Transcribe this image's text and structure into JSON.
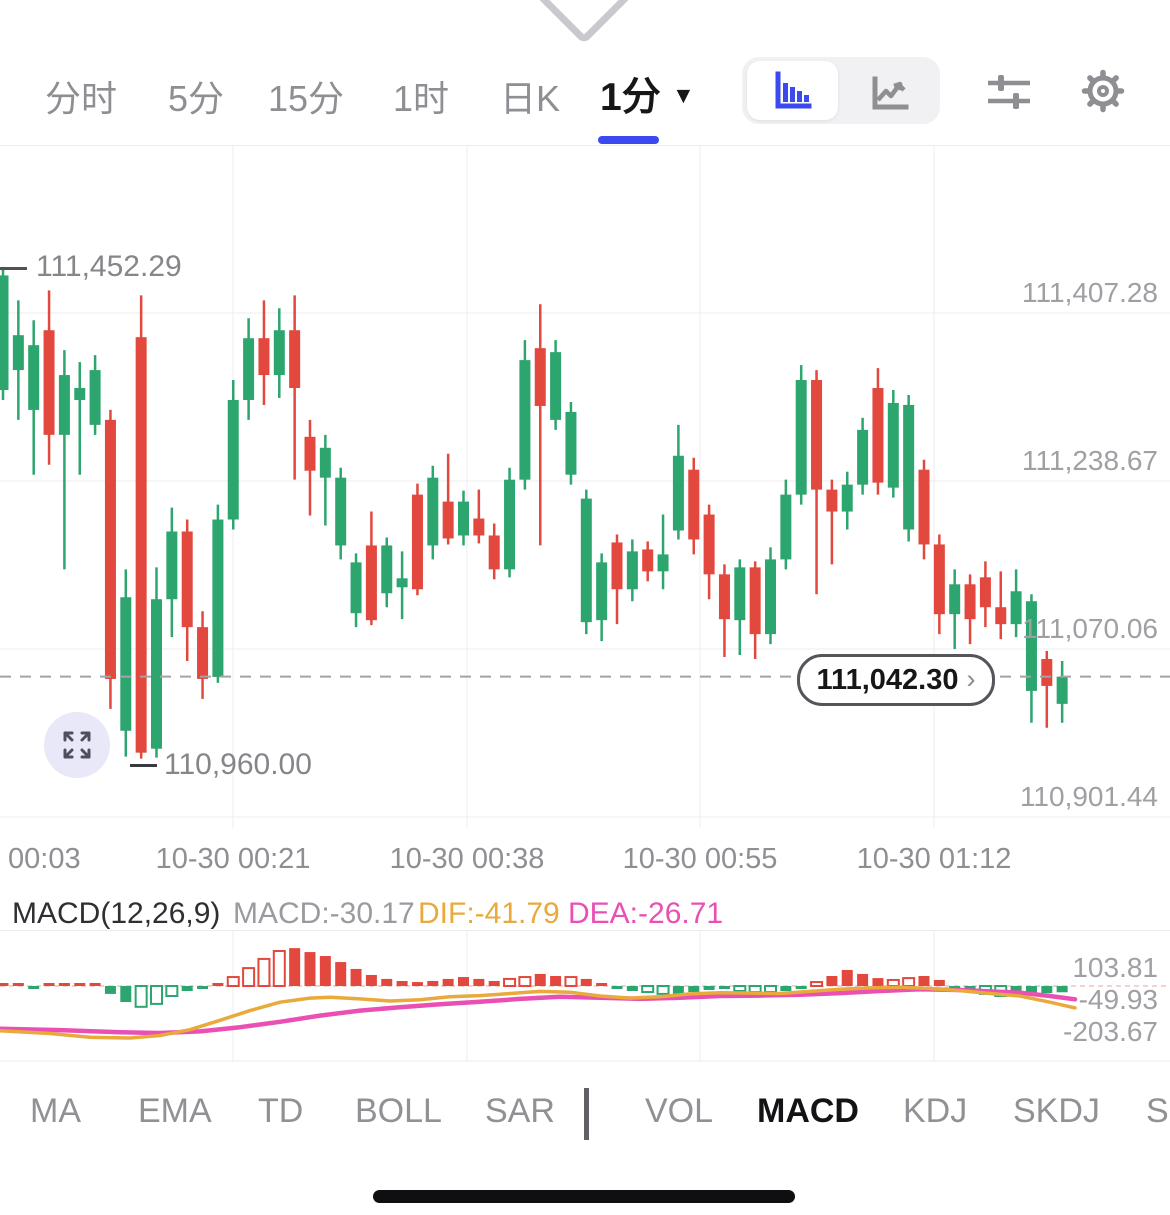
{
  "header": {
    "timeframes": [
      "分时",
      "5分",
      "15分",
      "1时",
      "日K"
    ],
    "selected_timeframe": "1分",
    "dropdown_arrow": "▼",
    "accent_color": "#3a4af0"
  },
  "chart": {
    "high_marker": {
      "price": 111452.29,
      "label": "111,452.29"
    },
    "low_marker": {
      "price": 110960.0,
      "label": "110,960.00"
    },
    "current_price": {
      "price": 111042.3,
      "label": "111,042.30",
      "chevron": "›"
    },
    "y_axis_labels": [
      {
        "price": 111407.28,
        "label": "111,407.28"
      },
      {
        "price": 111238.67,
        "label": "111,238.67"
      },
      {
        "price": 111070.06,
        "label": "111,070.06"
      },
      {
        "price": 110901.44,
        "label": "110,901.44"
      }
    ],
    "x_axis_labels": [
      "00:03",
      "10-30 00:21",
      "10-30 00:38",
      "10-30 00:55",
      "10-30 01:12"
    ],
    "up_color": "#2da56e",
    "down_color": "#e2483d"
  },
  "chart_data": {
    "type": "candlestick",
    "note_units": "candles are [open, close, low, high]",
    "candles": [
      [
        111330,
        111445,
        111320,
        111452.29
      ],
      [
        111350,
        111385,
        111300,
        111420
      ],
      [
        111310,
        111375,
        111245,
        111400
      ],
      [
        111390,
        111285,
        111255,
        111430
      ],
      [
        111285,
        111345,
        111150,
        111370
      ],
      [
        111320,
        111332,
        111245,
        111358
      ],
      [
        111295,
        111350,
        111285,
        111365
      ],
      [
        111300,
        111040,
        111010,
        111310
      ],
      [
        110988,
        111122,
        110962,
        111150
      ],
      [
        111383,
        110966,
        110960,
        111425
      ],
      [
        110970,
        111120,
        110961,
        111152
      ],
      [
        111120,
        111188,
        111082,
        111212
      ],
      [
        111188,
        111092,
        111058,
        111200
      ],
      [
        111092,
        111040,
        111020,
        111108
      ],
      [
        111042,
        111200,
        111036,
        111215
      ],
      [
        111200,
        111320,
        111190,
        111340
      ],
      [
        111320,
        111382,
        111300,
        111402
      ],
      [
        111382,
        111345,
        111315,
        111420
      ],
      [
        111345,
        111390,
        111322,
        111412
      ],
      [
        111390,
        111332,
        111240,
        111425
      ],
      [
        111283,
        111249,
        111204,
        111300
      ],
      [
        111242,
        111272,
        111194,
        111285
      ],
      [
        111174,
        111242,
        111160,
        111252
      ],
      [
        111106,
        111157,
        111092,
        111166
      ],
      [
        111174,
        111099,
        111094,
        111208
      ],
      [
        111126,
        111174,
        111112,
        111182
      ],
      [
        111132,
        111141,
        111100,
        111168
      ],
      [
        111225,
        111130,
        111124,
        111236
      ],
      [
        111174,
        111242,
        111160,
        111254
      ],
      [
        111218,
        111181,
        111175,
        111266
      ],
      [
        111184,
        111218,
        111174,
        111229
      ],
      [
        111201,
        111184,
        111176,
        111230
      ],
      [
        111184,
        111150,
        111140,
        111196
      ],
      [
        111150,
        111240,
        111142,
        111252
      ],
      [
        111240,
        111360,
        111230,
        111380
      ],
      [
        111372,
        111314,
        111174,
        111416
      ],
      [
        111300,
        111368,
        111290,
        111380
      ],
      [
        111245,
        111308,
        111235,
        111318
      ],
      [
        111097,
        111221,
        111085,
        111230
      ],
      [
        111099,
        111157,
        111078,
        111166
      ],
      [
        111177,
        111130,
        111095,
        111185
      ],
      [
        111130,
        111168,
        111118,
        111180
      ],
      [
        111170,
        111148,
        111138,
        111178
      ],
      [
        111148,
        111165,
        111130,
        111205
      ],
      [
        111189,
        111264,
        111180,
        111295
      ],
      [
        111250,
        111180,
        111165,
        111262
      ],
      [
        111205,
        111145,
        111120,
        111215
      ],
      [
        111145,
        111100,
        111062,
        111155
      ],
      [
        111099,
        111152,
        111064,
        111160
      ],
      [
        111152,
        111085,
        111060,
        111158
      ],
      [
        111085,
        111160,
        111075,
        111172
      ],
      [
        111160,
        111225,
        111150,
        111240
      ],
      [
        111225,
        111340,
        111215,
        111355
      ],
      [
        111340,
        111230,
        111125,
        111350
      ],
      [
        111230,
        111208,
        111155,
        111240
      ],
      [
        111208,
        111235,
        111190,
        111248
      ],
      [
        111235,
        111290,
        111225,
        111302
      ],
      [
        111332,
        111237,
        111225,
        111352
      ],
      [
        111232,
        111317,
        111222,
        111330
      ],
      [
        111190,
        111315,
        111178,
        111325
      ],
      [
        111250,
        111175,
        111160,
        111260
      ],
      [
        111175,
        111105,
        111085,
        111185
      ],
      [
        111105,
        111135,
        111070,
        111150
      ],
      [
        111135,
        111100,
        111075,
        111145
      ],
      [
        111142,
        111112,
        111092,
        111158
      ],
      [
        111112,
        111095,
        111080,
        111148
      ],
      [
        111095,
        111128,
        111082,
        111150
      ],
      [
        111028,
        111118,
        110996,
        111125
      ],
      [
        111060,
        111033,
        110991,
        111068
      ],
      [
        111015,
        111042.3,
        110996,
        111058
      ]
    ],
    "macd": {
      "params": "MACD(12,26,9)",
      "macd_label": "MACD:-30.17",
      "dif_label": "DIF:-41.79",
      "dea_label": "DEA:-26.71",
      "macd_value": -30.17,
      "dif_value": -41.79,
      "dea_value": -26.71,
      "params_color": "#2e2e33",
      "macd_color": "#9a9aa0",
      "dif_color": "#e9a93b",
      "dea_color": "#ea4fb4",
      "bars": [
        10,
        7,
        -7,
        14,
        14,
        10,
        5,
        -38,
        -77,
        -100,
        -86,
        -48,
        -24,
        -14,
        14,
        43,
        86,
        130,
        168,
        182,
        163,
        144,
        115,
        82,
        53,
        34,
        24,
        19,
        24,
        34,
        43,
        34,
        24,
        34,
        43,
        58,
        48,
        43,
        34,
        14,
        -14,
        -24,
        -29,
        -38,
        -38,
        -29,
        -19,
        -14,
        -24,
        -29,
        -29,
        -24,
        -14,
        19,
        48,
        77,
        58,
        38,
        29,
        38,
        48,
        29,
        -10,
        -24,
        -38,
        -48,
        -48,
        -38,
        -34,
        -30.17
      ],
      "hollow_indices": [
        9,
        10,
        11,
        15,
        16,
        17,
        18,
        33,
        34,
        37,
        42,
        43,
        48,
        49,
        50,
        53,
        58,
        59,
        64,
        65
      ],
      "dif_line": [
        [
          0,
          -215
        ],
        [
          50,
          -228
        ],
        [
          90,
          -246
        ],
        [
          130,
          -250
        ],
        [
          160,
          -238
        ],
        [
          190,
          -210
        ],
        [
          220,
          -165
        ],
        [
          250,
          -118
        ],
        [
          280,
          -78
        ],
        [
          310,
          -58
        ],
        [
          330,
          -54
        ],
        [
          360,
          -62
        ],
        [
          390,
          -72
        ],
        [
          420,
          -66
        ],
        [
          450,
          -52
        ],
        [
          480,
          -46
        ],
        [
          510,
          -36
        ],
        [
          540,
          -26
        ],
        [
          570,
          -30
        ],
        [
          600,
          -48
        ],
        [
          630,
          -58
        ],
        [
          660,
          -52
        ],
        [
          690,
          -38
        ],
        [
          720,
          -32
        ],
        [
          750,
          -34
        ],
        [
          780,
          -36
        ],
        [
          810,
          -26
        ],
        [
          840,
          -16
        ],
        [
          870,
          -9
        ],
        [
          900,
          -6
        ],
        [
          930,
          -12
        ],
        [
          960,
          -22
        ],
        [
          990,
          -36
        ],
        [
          1020,
          -48
        ],
        [
          1050,
          -78
        ],
        [
          1075,
          -105
        ]
      ],
      "dea_line": [
        [
          0,
          -205
        ],
        [
          60,
          -212
        ],
        [
          120,
          -222
        ],
        [
          160,
          -226
        ],
        [
          200,
          -218
        ],
        [
          240,
          -198
        ],
        [
          280,
          -172
        ],
        [
          320,
          -142
        ],
        [
          360,
          -118
        ],
        [
          400,
          -102
        ],
        [
          440,
          -88
        ],
        [
          480,
          -76
        ],
        [
          520,
          -62
        ],
        [
          560,
          -52
        ],
        [
          600,
          -56
        ],
        [
          640,
          -62
        ],
        [
          680,
          -56
        ],
        [
          720,
          -48
        ],
        [
          760,
          -46
        ],
        [
          800,
          -42
        ],
        [
          840,
          -34
        ],
        [
          880,
          -24
        ],
        [
          920,
          -16
        ],
        [
          960,
          -19
        ],
        [
          990,
          -26
        ],
        [
          1020,
          -32
        ],
        [
          1050,
          -48
        ],
        [
          1075,
          -64
        ]
      ],
      "y_labels": [
        {
          "value": 103.81,
          "label": "103.81"
        },
        {
          "value": -49.93,
          "label": "-49.93"
        },
        {
          "value": -203.67,
          "label": "-203.67"
        }
      ]
    }
  },
  "indicator_tabs": {
    "main": [
      "MA",
      "EMA",
      "TD",
      "BOLL",
      "SAR"
    ],
    "sub": [
      "VOL",
      "MACD",
      "KDJ",
      "SKDJ",
      "S"
    ],
    "selected": "MACD"
  }
}
